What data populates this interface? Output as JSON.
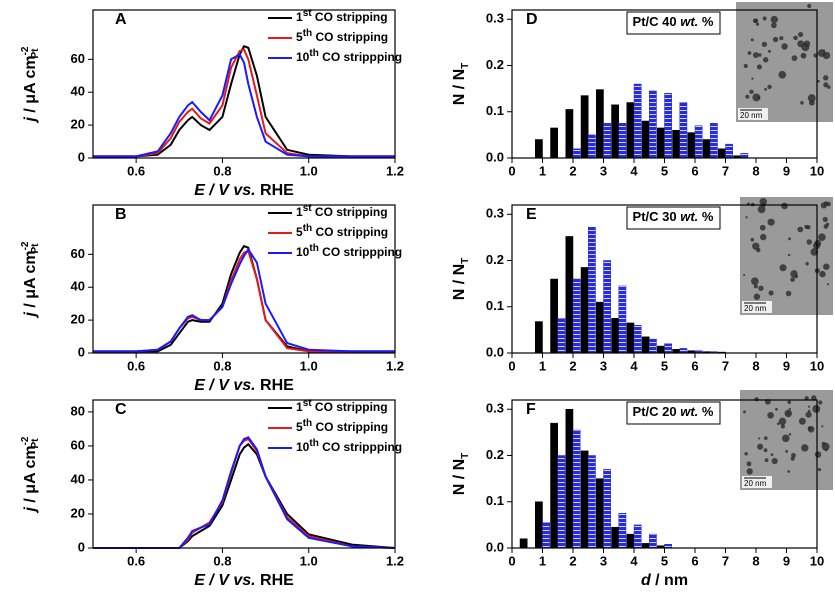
{
  "chart_data": [
    {
      "type": "line",
      "label": "A",
      "xlim": [
        0.5,
        1.2
      ],
      "xticks": [
        0.6,
        0.8,
        {
          "value": 1,
          "label": "1.0"
        },
        1.2
      ],
      "ylim": [
        0,
        90
      ],
      "yticks": [
        0,
        20,
        40,
        60
      ],
      "xlabel": {
        "symbol": "E",
        "mid": "  / V ",
        "it": "vs.",
        "end": " RHE"
      },
      "ylabel": {
        "symbol": "j",
        "unit": " / μA cm",
        "sup": "-2",
        "sub": "Pt"
      },
      "x": [
        0.5,
        0.6,
        0.65,
        0.68,
        0.7,
        0.72,
        0.73,
        0.75,
        0.77,
        0.8,
        0.82,
        0.84,
        0.85,
        0.86,
        0.88,
        0.9,
        0.95,
        1.0,
        1.1,
        1.2
      ],
      "series": [
        {
          "name": "1st CO stripping",
          "color": "#000000",
          "values": [
            1,
            1,
            2,
            8,
            17,
            23,
            25,
            20,
            17,
            25,
            45,
            63,
            68,
            67,
            50,
            25,
            5,
            2,
            1,
            1
          ]
        },
        {
          "name": "5th CO stripping",
          "color": "#e8191c",
          "values": [
            1,
            1,
            3,
            12,
            22,
            28,
            30,
            24,
            21,
            32,
            55,
            65,
            66,
            60,
            38,
            15,
            3,
            1,
            1,
            1
          ]
        },
        {
          "name": "10th CO strippping",
          "color": "#1a1aff",
          "values": [
            1,
            1,
            4,
            15,
            25,
            32,
            34,
            28,
            23,
            38,
            60,
            63,
            58,
            45,
            25,
            10,
            2,
            1,
            1,
            1
          ]
        }
      ]
    },
    {
      "type": "line",
      "label": "B",
      "xlim": [
        0.5,
        1.2
      ],
      "xticks": [
        0.6,
        0.8,
        {
          "value": 1,
          "label": "1.0"
        },
        1.2
      ],
      "ylim": [
        0,
        90
      ],
      "yticks": [
        0,
        20,
        40,
        60
      ],
      "xlabel": {
        "symbol": "E",
        "mid": "  / V ",
        "it": "vs.",
        "end": " RHE"
      },
      "ylabel": {
        "symbol": "j",
        "unit": " / μA cm",
        "sup": "-2",
        "sub": "Pt"
      },
      "x": [
        0.5,
        0.6,
        0.65,
        0.68,
        0.7,
        0.72,
        0.73,
        0.75,
        0.77,
        0.8,
        0.82,
        0.84,
        0.85,
        0.86,
        0.88,
        0.9,
        0.95,
        1.0,
        1.1,
        1.2
      ],
      "series": [
        {
          "name": "1st CO stripping",
          "color": "#000000",
          "values": [
            1,
            1,
            1,
            5,
            12,
            19,
            20,
            19,
            19,
            30,
            48,
            61,
            65,
            64,
            45,
            20,
            4,
            1,
            1,
            1
          ]
        },
        {
          "name": "5th CO stripping",
          "color": "#e8191c",
          "values": [
            1,
            1,
            2,
            7,
            15,
            21,
            22,
            20,
            20,
            28,
            44,
            57,
            61,
            62,
            45,
            20,
            3,
            1,
            1,
            1
          ]
        },
        {
          "name": "10th CO strippping",
          "color": "#1a1aff",
          "values": [
            1,
            1,
            2,
            7,
            15,
            22,
            23,
            20,
            20,
            28,
            42,
            54,
            59,
            63,
            55,
            30,
            6,
            2,
            1,
            1
          ]
        }
      ]
    },
    {
      "type": "line",
      "label": "C",
      "xlim": [
        0.5,
        1.2
      ],
      "xticks": [
        0.6,
        0.8,
        {
          "value": 1,
          "label": "1.0"
        },
        1.2
      ],
      "ylim": [
        0,
        87
      ],
      "yticks": [
        0,
        20,
        40,
        60,
        80
      ],
      "xlabel": {
        "symbol": "E",
        "mid": "  / V ",
        "it": "vs.",
        "end": " RHE"
      },
      "ylabel": {
        "symbol": "j",
        "unit": " / μA cm",
        "sup": "-2",
        "sub": "Pt"
      },
      "x": [
        0.5,
        0.6,
        0.65,
        0.68,
        0.7,
        0.72,
        0.73,
        0.75,
        0.77,
        0.8,
        0.82,
        0.84,
        0.85,
        0.86,
        0.88,
        0.9,
        0.95,
        1.0,
        1.1,
        1.2
      ],
      "series": [
        {
          "name": "1st CO stripping",
          "color": "#000000",
          "values": [
            0,
            0,
            0,
            0,
            0,
            4,
            7,
            10,
            13,
            25,
            40,
            55,
            59,
            61,
            55,
            42,
            20,
            8,
            2,
            0
          ]
        },
        {
          "name": "5th CO stripping",
          "color": "#e8191c",
          "values": [
            0,
            0,
            0,
            0,
            0,
            5,
            9,
            12,
            15,
            27,
            44,
            60,
            63,
            64,
            57,
            42,
            18,
            7,
            1,
            0
          ]
        },
        {
          "name": "10th CO strippping",
          "color": "#1a1aff",
          "values": [
            0,
            0,
            0,
            0,
            0,
            6,
            10,
            12,
            14,
            28,
            45,
            60,
            64,
            65,
            58,
            42,
            17,
            6,
            1,
            0
          ]
        }
      ]
    },
    {
      "type": "bar",
      "label": "D",
      "annotation": {
        "pre": "Pt/C 40 ",
        "it": "wt.",
        "post": " %"
      },
      "inset_scale": "20 nm",
      "xlim": [
        0,
        10
      ],
      "xticks": [
        0,
        1,
        2,
        3,
        4,
        5,
        6,
        7,
        8,
        9,
        10
      ],
      "ylim": [
        0,
        0.32
      ],
      "yticks": [
        {
          "value": 0,
          "label": "0.0"
        },
        0.1,
        0.2,
        0.3
      ],
      "ylabel": {
        "main": "N / N",
        "sub": "T"
      },
      "x": [
        1,
        1.5,
        2,
        2.5,
        3,
        3.5,
        4,
        4.5,
        5,
        5.5,
        6,
        6.5,
        7,
        7.5
      ],
      "series": [
        {
          "color": "#000000",
          "values": [
            0.04,
            0.065,
            0.105,
            0.135,
            0.148,
            0.115,
            0.12,
            0.08,
            0.065,
            0.06,
            0.055,
            0.04,
            0.02,
            0.005
          ]
        },
        {
          "color": "#2a2ad8",
          "values": [
            0,
            0,
            0.02,
            0.05,
            0.075,
            0.075,
            0.16,
            0.145,
            0.14,
            0.12,
            0.07,
            0.075,
            0.03,
            0.01
          ]
        }
      ]
    },
    {
      "type": "bar",
      "label": "E",
      "annotation": {
        "pre": "Pt/C 30 ",
        "it": "wt.",
        "post": " %"
      },
      "inset_scale": "20 nm",
      "xlim": [
        0,
        10
      ],
      "xticks": [
        0,
        1,
        2,
        3,
        4,
        5,
        6,
        7,
        8,
        9,
        10
      ],
      "ylim": [
        0,
        0.32
      ],
      "yticks": [
        {
          "value": 0,
          "label": "0.0"
        },
        0.1,
        0.2,
        0.3
      ],
      "ylabel": {
        "main": "N / N",
        "sub": "T"
      },
      "x": [
        1,
        1.5,
        2,
        2.5,
        3,
        3.5,
        4,
        4.5,
        5,
        5.5,
        6,
        6.5,
        7
      ],
      "series": [
        {
          "color": "#000000",
          "values": [
            0.068,
            0.16,
            0.252,
            0.185,
            0.11,
            0.075,
            0.065,
            0.035,
            0.015,
            0.008,
            0.005,
            0.003,
            0.002
          ]
        },
        {
          "color": "#2a2ad8",
          "values": [
            0,
            0.075,
            0.16,
            0.272,
            0.2,
            0.145,
            0.06,
            0.03,
            0.02,
            0.01,
            0.005,
            0.003,
            0
          ]
        }
      ]
    },
    {
      "type": "bar",
      "label": "F",
      "annotation": {
        "pre": "Pt/C 20 ",
        "it": "wt.",
        "post": " %"
      },
      "inset_scale": "20 nm",
      "xlim": [
        0,
        10
      ],
      "xticks": [
        0,
        1,
        2,
        3,
        4,
        5,
        6,
        7,
        8,
        9,
        10
      ],
      "ylim": [
        0,
        0.32
      ],
      "yticks": [
        {
          "value": 0,
          "label": "0.0"
        },
        0.1,
        0.2,
        0.3
      ],
      "ylabel": {
        "main": "N / N",
        "sub": "T"
      },
      "xlabel": {
        "symbol": "d",
        "unit": " / nm"
      },
      "x": [
        0.5,
        1,
        1.5,
        2,
        2.5,
        3,
        3.5,
        4,
        4.5,
        5
      ],
      "series": [
        {
          "color": "#000000",
          "values": [
            0.02,
            0.1,
            0.27,
            0.3,
            0.21,
            0.15,
            0.045,
            0.03,
            0.01,
            0.005
          ]
        },
        {
          "color": "#2a2ad8",
          "values": [
            0,
            0.055,
            0.2,
            0.255,
            0.2,
            0.17,
            0.075,
            0.05,
            0.03,
            0.008
          ]
        }
      ]
    }
  ]
}
